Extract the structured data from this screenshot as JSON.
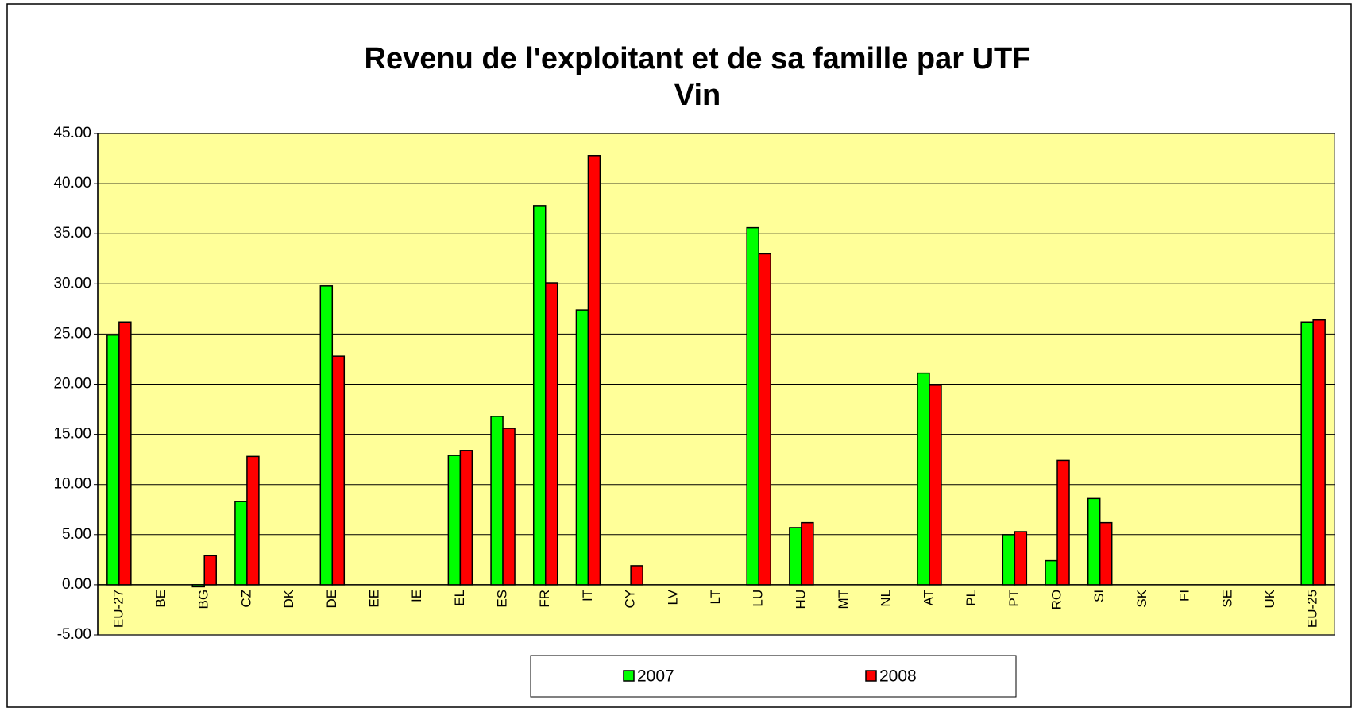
{
  "chart_data": {
    "type": "bar",
    "title": "Revenu de l'exploitant et de sa famille par UTF",
    "subtitle": "Vin",
    "categories": [
      "EU-27",
      "BE",
      "BG",
      "CZ",
      "DK",
      "DE",
      "EE",
      "IE",
      "EL",
      "ES",
      "FR",
      "IT",
      "CY",
      "LV",
      "LT",
      "LU",
      "HU",
      "MT",
      "NL",
      "AT",
      "PL",
      "PT",
      "RO",
      "SI",
      "SK",
      "FI",
      "SE",
      "UK",
      "EU-25"
    ],
    "series": [
      {
        "name": "2007",
        "color": "#00ff00",
        "values": [
          24.9,
          null,
          -0.2,
          8.3,
          null,
          29.8,
          null,
          null,
          12.9,
          16.8,
          37.8,
          27.4,
          null,
          null,
          null,
          35.6,
          5.7,
          null,
          null,
          21.1,
          null,
          5.0,
          2.4,
          8.6,
          null,
          null,
          null,
          null,
          26.2
        ]
      },
      {
        "name": "2008",
        "color": "#ff0000",
        "values": [
          26.2,
          null,
          2.9,
          12.8,
          null,
          22.8,
          null,
          null,
          13.4,
          15.6,
          30.1,
          42.8,
          1.9,
          null,
          null,
          33.0,
          6.2,
          null,
          null,
          19.9,
          null,
          5.3,
          12.4,
          6.2,
          null,
          null,
          null,
          null,
          26.4
        ]
      }
    ],
    "ylim": [
      -5,
      45
    ],
    "yticks": [
      {
        "value": -5,
        "label": "-5.00"
      },
      {
        "value": 0,
        "label": "0.00"
      },
      {
        "value": 5,
        "label": "5.00"
      },
      {
        "value": 10,
        "label": "10.00"
      },
      {
        "value": 15,
        "label": "15.00"
      },
      {
        "value": 20,
        "label": "20.00"
      },
      {
        "value": 25,
        "label": "25.00"
      },
      {
        "value": 30,
        "label": "30.00"
      },
      {
        "value": 35,
        "label": "35.00"
      },
      {
        "value": 40,
        "label": "40.00"
      },
      {
        "value": 45,
        "label": "45.00"
      }
    ],
    "grid": true,
    "plot_background": "#ffff99",
    "legend": "bottom"
  }
}
